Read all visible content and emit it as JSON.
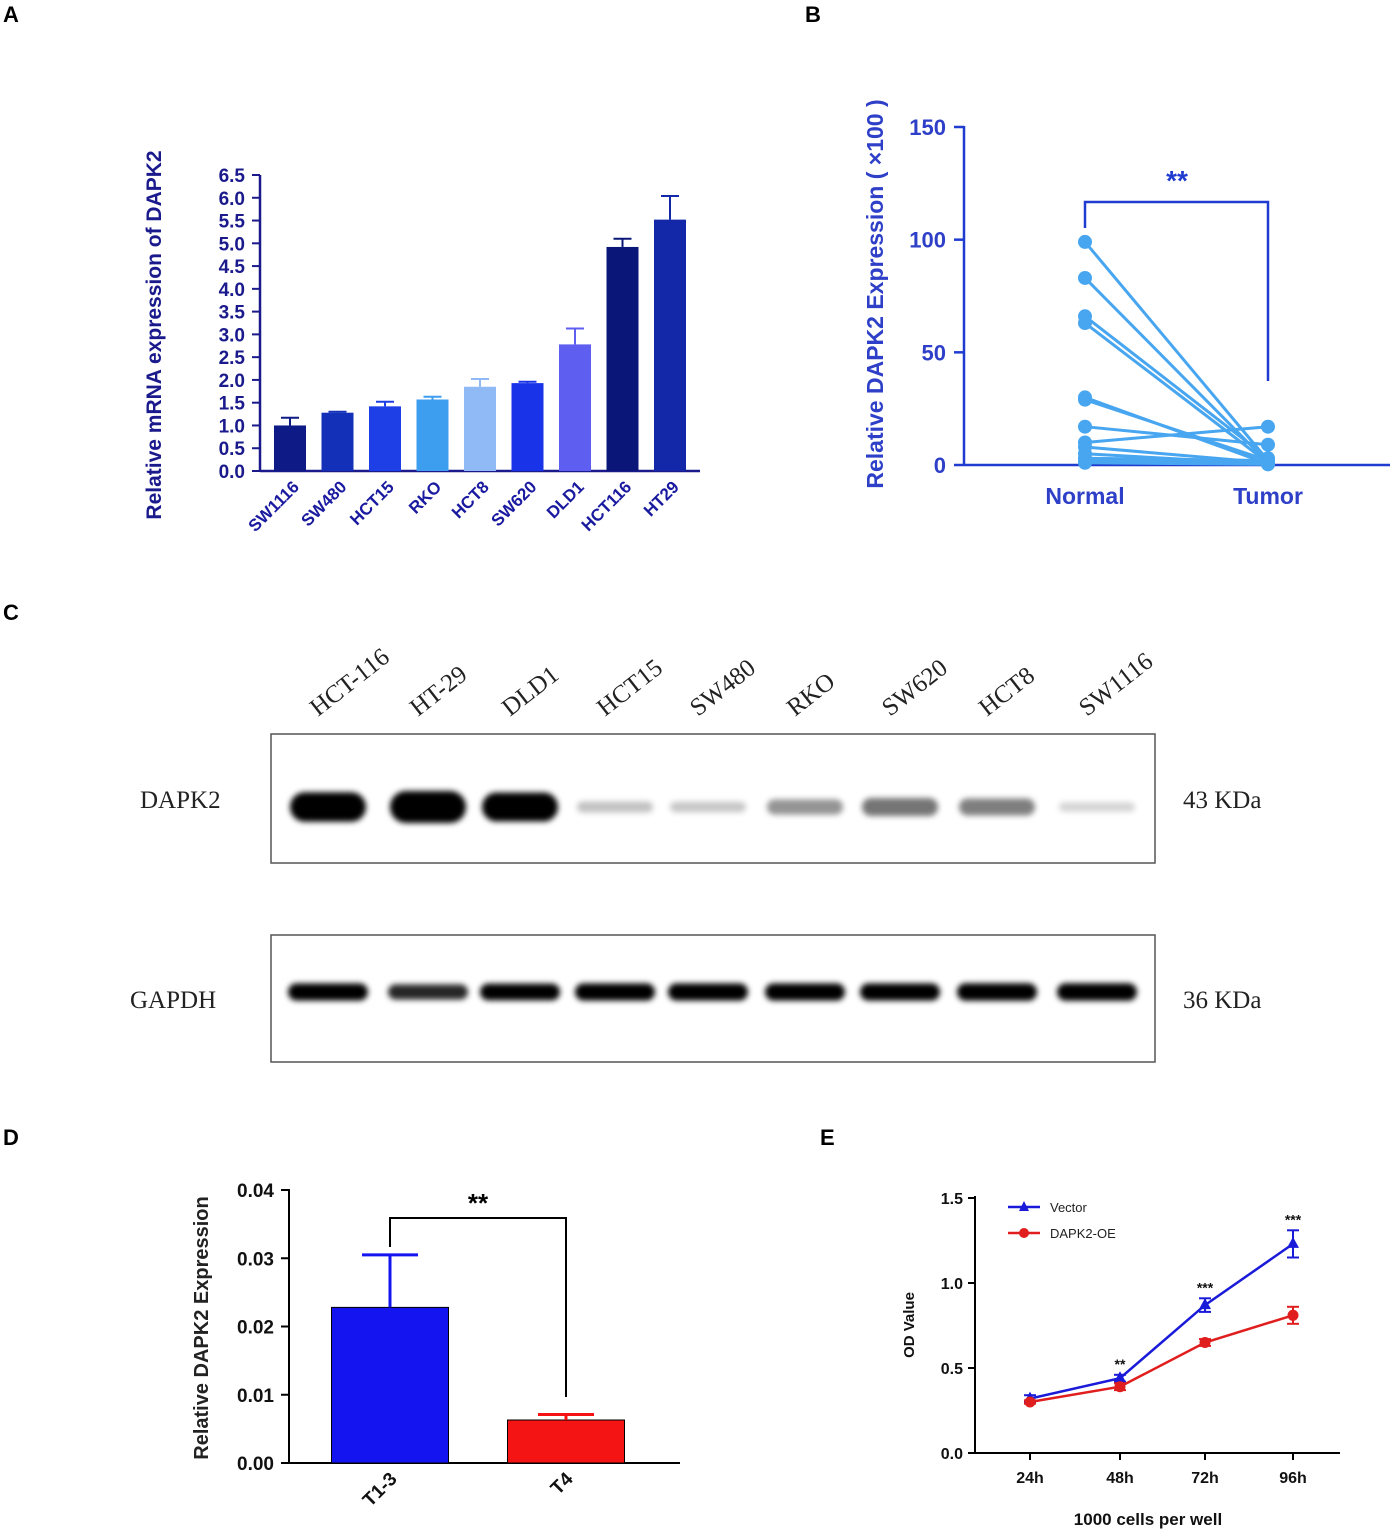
{
  "panels": {
    "a": "A",
    "b": "B",
    "c": "C",
    "d": "D",
    "e": "E"
  },
  "panel_a": {
    "ylabel": "Relative mRNA expression of DAPK2",
    "ticks": [
      "0.0",
      "0.5",
      "1.0",
      "1.5",
      "2.0",
      "2.5",
      "3.0",
      "3.5",
      "4.0",
      "4.5",
      "5.0",
      "5.5",
      "6.0",
      "6.5"
    ],
    "bars": [
      {
        "label": "SW1116",
        "value": 1.0,
        "err": 0.17,
        "color": "#0e1a86"
      },
      {
        "label": "SW480",
        "value": 1.28,
        "err": 0.02,
        "color": "#1230b8"
      },
      {
        "label": "HCT15",
        "value": 1.42,
        "err": 0.1,
        "color": "#1e3fe6"
      },
      {
        "label": "RKO",
        "value": 1.57,
        "err": 0.06,
        "color": "#3d9ef0"
      },
      {
        "label": "HCT8",
        "value": 1.85,
        "err": 0.17,
        "color": "#8fbaf6"
      },
      {
        "label": "SW620",
        "value": 1.93,
        "err": 0.03,
        "color": "#1833e8"
      },
      {
        "label": "DLD1",
        "value": 2.78,
        "err": 0.35,
        "color": "#5e5ef0"
      },
      {
        "label": "HCT116",
        "value": 4.92,
        "err": 0.18,
        "color": "#0b1778"
      },
      {
        "label": "HT29",
        "value": 5.52,
        "err": 0.52,
        "color": "#1228a8"
      }
    ]
  },
  "panel_b": {
    "ylabel": "Relative DAPK2 Expression ( ×100 )",
    "ticks": [
      "0",
      "50",
      "100",
      "150"
    ],
    "categories": [
      "Normal",
      "Tumor"
    ],
    "significance": "**",
    "pairs": [
      [
        99,
        2
      ],
      [
        83,
        1
      ],
      [
        66,
        3
      ],
      [
        63,
        1
      ],
      [
        30,
        0.5
      ],
      [
        29,
        2
      ],
      [
        17,
        9
      ],
      [
        10,
        17
      ],
      [
        8,
        1
      ],
      [
        5,
        0.5
      ],
      [
        3,
        2
      ],
      [
        2,
        1
      ],
      [
        1,
        0.3
      ]
    ]
  },
  "panel_c": {
    "lanes": [
      "HCT-116",
      "HT-29",
      "DLD1",
      "HCT15",
      "SW480",
      "RKO",
      "SW620",
      "HCT8",
      "SW1116"
    ],
    "blot1_label": "DAPK2",
    "blot1_size": "43 KDa",
    "blot2_label": "GAPDH",
    "blot2_size": "36 KDa",
    "dapk2_intensity": [
      0.9,
      1.0,
      0.88,
      0.12,
      0.1,
      0.3,
      0.42,
      0.38,
      0.05
    ],
    "gapdh_intensity": [
      0.9,
      0.65,
      0.85,
      0.92,
      0.9,
      0.9,
      0.92,
      0.95,
      0.95
    ]
  },
  "panel_d": {
    "ylabel": "Relative DAPK2 Expression",
    "ticks": [
      "0.00",
      "0.01",
      "0.02",
      "0.03",
      "0.04"
    ],
    "significance": "**",
    "bars": [
      {
        "label": "T1-3",
        "value": 0.0228,
        "err": 0.0077,
        "color": "#1414f0"
      },
      {
        "label": "T4",
        "value": 0.0063,
        "err": 0.0008,
        "color": "#f41414"
      }
    ]
  },
  "panel_e": {
    "ylabel": "OD Value",
    "xlabel": "1000 cells per well",
    "ticks": [
      "0.0",
      "0.5",
      "1.0",
      "1.5"
    ],
    "categories": [
      "24h",
      "48h",
      "72h",
      "96h"
    ],
    "significance": [
      "",
      "**",
      "***",
      "***"
    ],
    "series": [
      {
        "name": "Vector",
        "values": [
          0.32,
          0.44,
          0.87,
          1.23
        ],
        "err": [
          0.02,
          0.02,
          0.04,
          0.08
        ],
        "color": "#1a1ad9"
      },
      {
        "name": "DAPK2-OE",
        "values": [
          0.3,
          0.39,
          0.65,
          0.81
        ],
        "err": [
          0.01,
          0.02,
          0.02,
          0.05
        ],
        "color": "#e01e1e"
      }
    ]
  }
}
